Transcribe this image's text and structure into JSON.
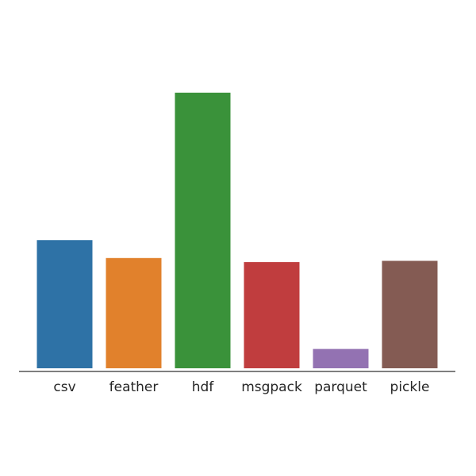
{
  "chart_data": {
    "type": "bar",
    "categories": [
      "csv",
      "feather",
      "hdf",
      "msgpack",
      "parquet",
      "pickle"
    ],
    "values": [
      4.65,
      4.0,
      10.0,
      3.85,
      0.7,
      3.9
    ],
    "colors": [
      "#2e72a6",
      "#e1812c",
      "#3a923a",
      "#c03d3e",
      "#9372b2",
      "#845b53"
    ],
    "title": "",
    "xlabel": "",
    "ylabel": "",
    "ylim": [
      0,
      10
    ],
    "grid": false,
    "legend": "none"
  }
}
